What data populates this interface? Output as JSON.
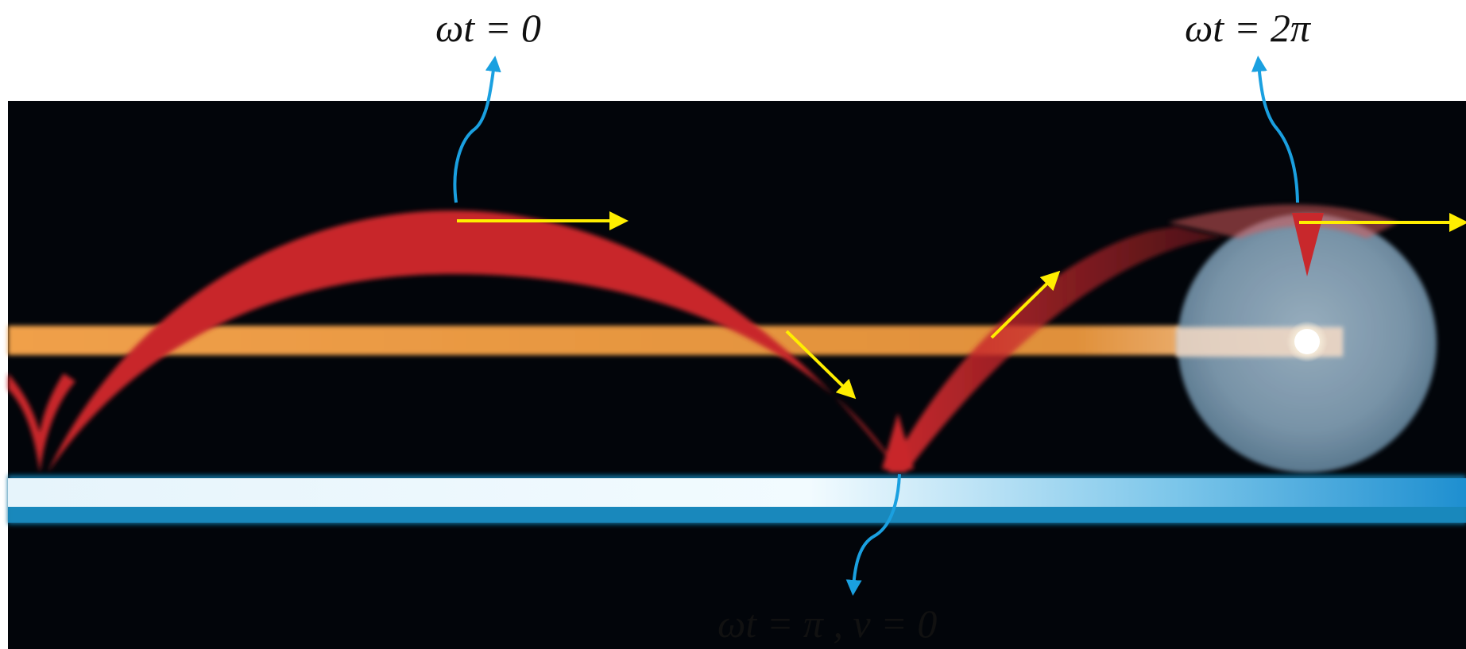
{
  "labels": {
    "top_left": "ωt = 0",
    "top_right": "ωt = 2π",
    "bottom": "ωt = π , v = 0"
  },
  "colors": {
    "background": "#ffffff",
    "photo_bg": "#02050a",
    "cycloid_trail": "#c8282c",
    "axle_trail": "#e8953a",
    "ground_bar": "#2a9fd8",
    "callout_arrow": "#1aa0e0",
    "velocity_arrow": "#ffee00",
    "label_text": "#111111"
  },
  "icons": {
    "callout": "curved-callout-arrow-icon",
    "velocity": "velocity-arrow-icon"
  }
}
